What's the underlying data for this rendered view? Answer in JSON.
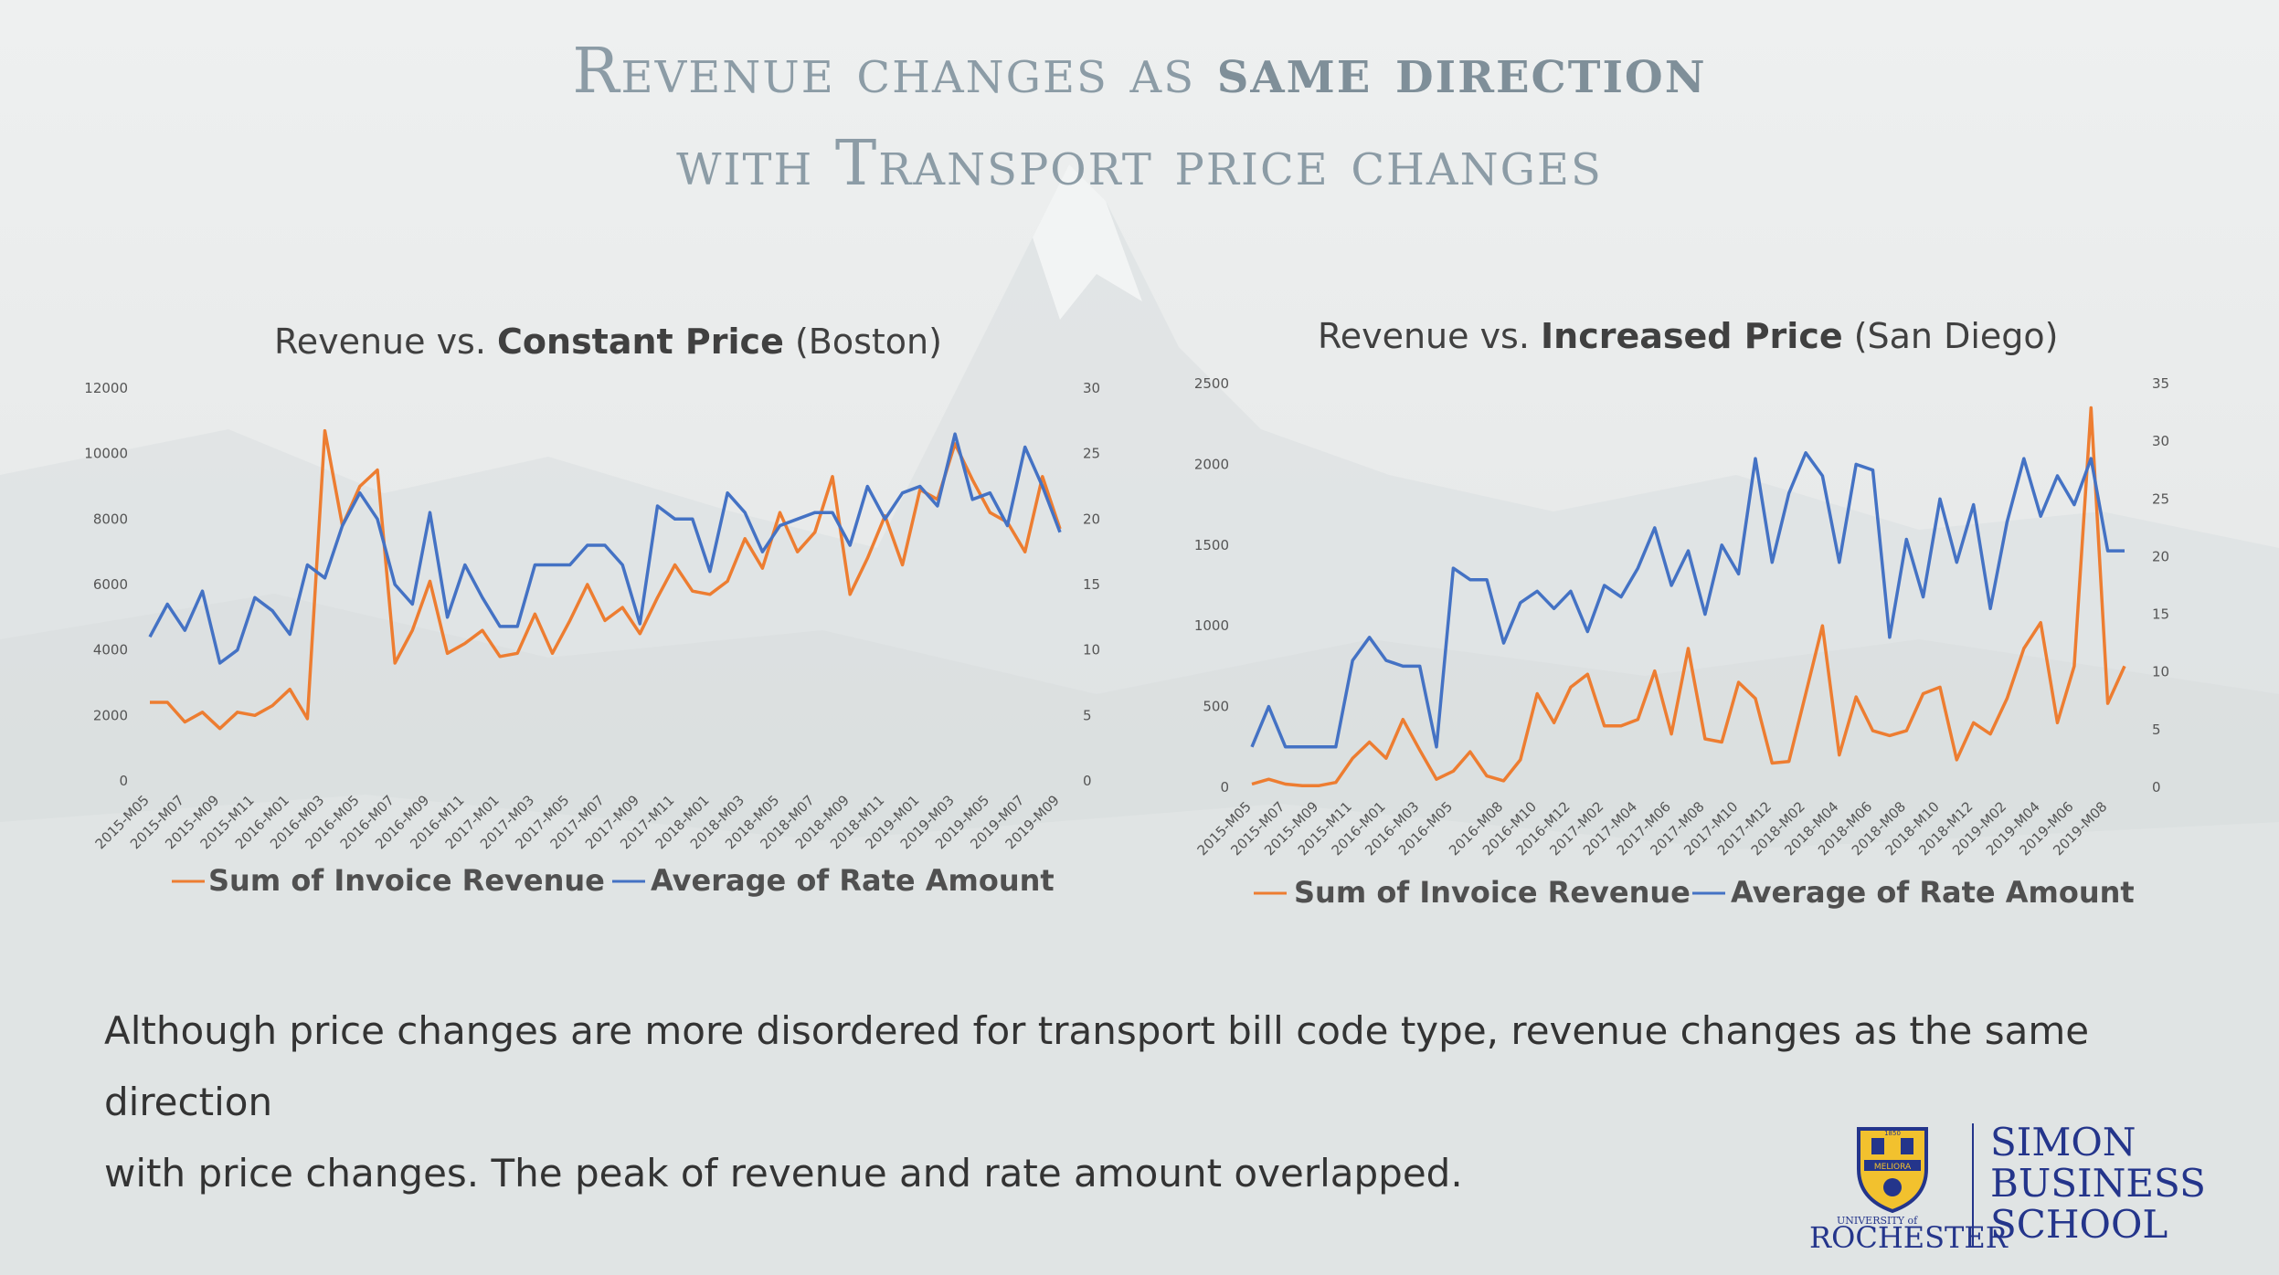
{
  "slide": {
    "title_line1_pre": "Revenue changes as ",
    "title_line1_bold": "same direction",
    "title_line2": "with Transport price changes",
    "caption_line1": "Although price changes are more disordered for transport bill code type, revenue changes as the same direction",
    "caption_line2": "with price changes. The peak of revenue and rate amount overlapped."
  },
  "logo": {
    "university_small": "UNIVERSITY of",
    "university": "ROCHESTER",
    "school_line1": "SIMON",
    "school_line2": "BUSINESS",
    "school_line3": "SCHOOL",
    "shield_text": "MELIORA",
    "shield_year": "1850"
  },
  "colors": {
    "revenue": "#ed7d31",
    "rate": "#4472c4",
    "title": "#8c9ca6",
    "logo": "#24358b",
    "shield_gold": "#f2c12e"
  },
  "chart_data": [
    {
      "type": "line",
      "title_pre": "Revenue vs. ",
      "title_bold": "Constant Price",
      "title_post": " (Boston)",
      "x": [
        "2015-M05",
        "2015-M06",
        "2015-M07",
        "2015-M08",
        "2015-M09",
        "2015-M10",
        "2015-M11",
        "2015-M12",
        "2016-M01",
        "2016-M02",
        "2016-M03",
        "2016-M04",
        "2016-M05",
        "2016-M06",
        "2016-M07",
        "2016-M08",
        "2016-M09",
        "2016-M10",
        "2016-M11",
        "2016-M12",
        "2017-M01",
        "2017-M02",
        "2017-M03",
        "2017-M04",
        "2017-M05",
        "2017-M06",
        "2017-M07",
        "2017-M08",
        "2017-M09",
        "2017-M10",
        "2017-M11",
        "2017-M12",
        "2018-M01",
        "2018-M02",
        "2018-M03",
        "2018-M04",
        "2018-M05",
        "2018-M06",
        "2018-M07",
        "2018-M08",
        "2018-M09",
        "2018-M10",
        "2018-M11",
        "2018-M12",
        "2019-M01",
        "2019-M02",
        "2019-M03",
        "2019-M04",
        "2019-M05",
        "2019-M06",
        "2019-M07",
        "2019-M08",
        "2019-M09"
      ],
      "x_tick_labels": [
        "2015-M05",
        "2015-M07",
        "2015-M09",
        "2015-M11",
        "2016-M01",
        "2016-M03",
        "2016-M05",
        "2016-M07",
        "2016-M09",
        "2016-M11",
        "2017-M01",
        "2017-M03",
        "2017-M05",
        "2017-M07",
        "2017-M09",
        "2017-M11",
        "2018-M01",
        "2018-M03",
        "2018-M05",
        "2018-M07",
        "2018-M09",
        "2018-M11",
        "2019-M01",
        "2019-M03",
        "2019-M05",
        "2019-M07",
        "2019-M09"
      ],
      "y_left_ticks": [
        "0",
        "2000",
        "4000",
        "6000",
        "8000",
        "10000",
        "12000"
      ],
      "y_right_ticks": [
        "0",
        "5",
        "10",
        "15",
        "20",
        "25",
        "30"
      ],
      "ylim_left": [
        0,
        12000
      ],
      "ylim_right": [
        0,
        30
      ],
      "legend_placement": "bottom",
      "series": [
        {
          "name": "Sum of Invoice Revenue",
          "axis": "left",
          "values": [
            2400,
            2400,
            1800,
            2100,
            1600,
            2100,
            2000,
            2300,
            2800,
            1900,
            10700,
            7800,
            9000,
            9500,
            3600,
            4600,
            6100,
            3900,
            4200,
            4600,
            3800,
            3900,
            5100,
            3900,
            4900,
            6000,
            4900,
            5300,
            4500,
            5600,
            6600,
            5800,
            5700,
            6100,
            7400,
            6500,
            8200,
            7000,
            7600,
            9300,
            5700,
            6800,
            8100,
            6600,
            8900,
            8600,
            10300,
            9200,
            8200,
            7900,
            7000,
            9300,
            7700
          ]
        },
        {
          "name": "Average of Rate Amount",
          "axis": "right",
          "values": [
            11,
            13.5,
            11.5,
            14.5,
            9,
            10,
            14,
            13,
            11.2,
            16.5,
            15.5,
            19.5,
            22,
            20,
            15,
            13.5,
            20.5,
            12.5,
            16.5,
            14,
            11.8,
            11.8,
            16.5,
            16.5,
            16.5,
            18,
            18,
            16.5,
            12,
            21,
            20,
            20,
            16,
            22,
            20.5,
            17.5,
            19.5,
            20,
            20.5,
            20.5,
            18,
            22.5,
            20,
            22,
            22.5,
            21,
            26.5,
            21.5,
            22,
            19.5,
            25.5,
            22.5,
            19
          ]
        }
      ]
    },
    {
      "type": "line",
      "title_pre": "Revenue vs. ",
      "title_bold": "Increased Price",
      "title_post": " (San Diego)",
      "x": [
        "2015-M05",
        "2015-M06",
        "2015-M07",
        "2015-M08",
        "2015-M09",
        "2015-M10",
        "2015-M11",
        "2015-M12",
        "2016-M01",
        "2016-M02",
        "2016-M03",
        "2016-M04",
        "2016-M05",
        "2016-M06",
        "2016-M07",
        "2016-M08",
        "2016-M09",
        "2016-M10",
        "2016-M11",
        "2016-M12",
        "2017-M01",
        "2017-M02",
        "2017-M03",
        "2017-M04",
        "2017-M05",
        "2017-M06",
        "2017-M07",
        "2017-M08",
        "2017-M09",
        "2017-M10",
        "2017-M11",
        "2017-M12",
        "2018-M01",
        "2018-M02",
        "2018-M03",
        "2018-M04",
        "2018-M05",
        "2018-M06",
        "2018-M07",
        "2018-M08",
        "2018-M09",
        "2018-M10",
        "2018-M11",
        "2018-M12",
        "2019-M01",
        "2019-M02",
        "2019-M03",
        "2019-M04",
        "2019-M05",
        "2019-M06",
        "2019-M07",
        "2019-M08",
        "2019-M09"
      ],
      "x_tick_labels": [
        "2015-M05",
        "2015-M07",
        "2015-M09",
        "2015-M11",
        "2016-M01",
        "2016-M03",
        "2016-M05",
        "2016-M08",
        "2016-M10",
        "2016-M12",
        "2017-M02",
        "2017-M04",
        "2017-M06",
        "2017-M08",
        "2017-M10",
        "2017-M12",
        "2018-M02",
        "2018-M04",
        "2018-M06",
        "2018-M08",
        "2018-M10",
        "2018-M12",
        "2019-M02",
        "2019-M04",
        "2019-M06",
        "2019-M08"
      ],
      "y_left_ticks": [
        "0",
        "500",
        "1000",
        "1500",
        "2000",
        "2500"
      ],
      "y_right_ticks": [
        "0",
        "5",
        "10",
        "15",
        "20",
        "25",
        "30",
        "35"
      ],
      "ylim_left": [
        0,
        2500
      ],
      "ylim_right": [
        0,
        35
      ],
      "legend_placement": "bottom",
      "series": [
        {
          "name": "Sum of Invoice Revenue",
          "axis": "left",
          "values": [
            20,
            50,
            20,
            10,
            10,
            30,
            180,
            280,
            180,
            420,
            230,
            50,
            100,
            220,
            70,
            40,
            170,
            580,
            400,
            620,
            700,
            380,
            380,
            420,
            720,
            330,
            860,
            300,
            280,
            650,
            550,
            150,
            160,
            580,
            1000,
            200,
            560,
            350,
            320,
            350,
            580,
            620,
            170,
            400,
            330,
            550,
            860,
            1020,
            400,
            750,
            2350,
            520,
            750
          ]
        },
        {
          "name": "Average of Rate Amount",
          "axis": "right",
          "values": [
            3.5,
            7,
            3.5,
            3.5,
            3.5,
            3.5,
            11,
            13,
            11,
            10.5,
            10.5,
            3.5,
            19,
            18,
            18,
            12.5,
            16,
            17,
            15.5,
            17,
            13.5,
            17.5,
            16.5,
            19,
            22.5,
            17.5,
            20.5,
            15,
            21,
            18.5,
            28.5,
            19.5,
            25.5,
            29,
            27,
            19.5,
            28,
            27.5,
            13,
            21.5,
            16.5,
            25,
            19.5,
            24.5,
            15.5,
            23,
            28.5,
            23.5,
            27,
            24.5,
            28.5,
            20.5,
            20.5
          ]
        }
      ]
    }
  ]
}
